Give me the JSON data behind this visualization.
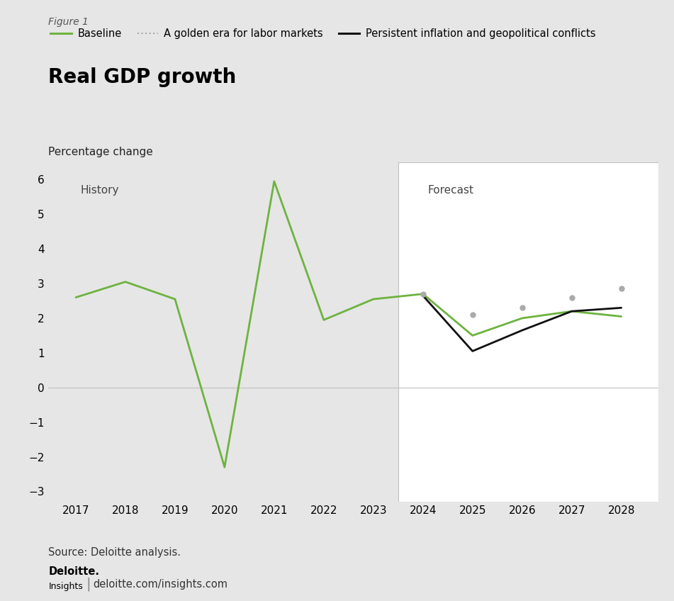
{
  "title": "Real GDP growth",
  "figure_label": "Figure 1",
  "ylabel": "Percentage change",
  "bg_color": "#e6e6e6",
  "forecast_bg_color": "#ffffff",
  "history_label": "History",
  "forecast_label": "Forecast",
  "source_text": "Source: Deloitte analysis.",
  "footer_brand": "Deloitte.",
  "footer_sub": "Insights",
  "footer_url": "deloitte.com/insights.com",
  "years": [
    2017,
    2018,
    2019,
    2020,
    2021,
    2022,
    2023,
    2024,
    2025,
    2026,
    2027,
    2028
  ],
  "baseline": [
    2.6,
    3.05,
    2.55,
    -2.3,
    5.95,
    1.95,
    2.55,
    2.7,
    1.5,
    2.0,
    2.2,
    2.05
  ],
  "golden_era": [
    null,
    null,
    null,
    null,
    null,
    null,
    null,
    2.7,
    2.1,
    2.3,
    2.6,
    2.85
  ],
  "persistent_inflation": [
    null,
    null,
    null,
    null,
    null,
    null,
    null,
    2.65,
    1.05,
    1.65,
    2.2,
    2.3
  ],
  "forecast_start_year": 2024,
  "baseline_color": "#6db33f",
  "golden_era_color": "#aaaaaa",
  "persistent_inflation_color": "#111111",
  "ylim": [
    -3.3,
    6.5
  ],
  "yticks": [
    -3,
    -2,
    -1,
    0,
    1,
    2,
    3,
    4,
    5,
    6
  ],
  "xlim_left": 2016.45,
  "xlim_right": 2028.75,
  "legend_labels": [
    "Baseline",
    "A golden era for labor markets",
    "Persistent inflation and geopolitical conflicts"
  ]
}
